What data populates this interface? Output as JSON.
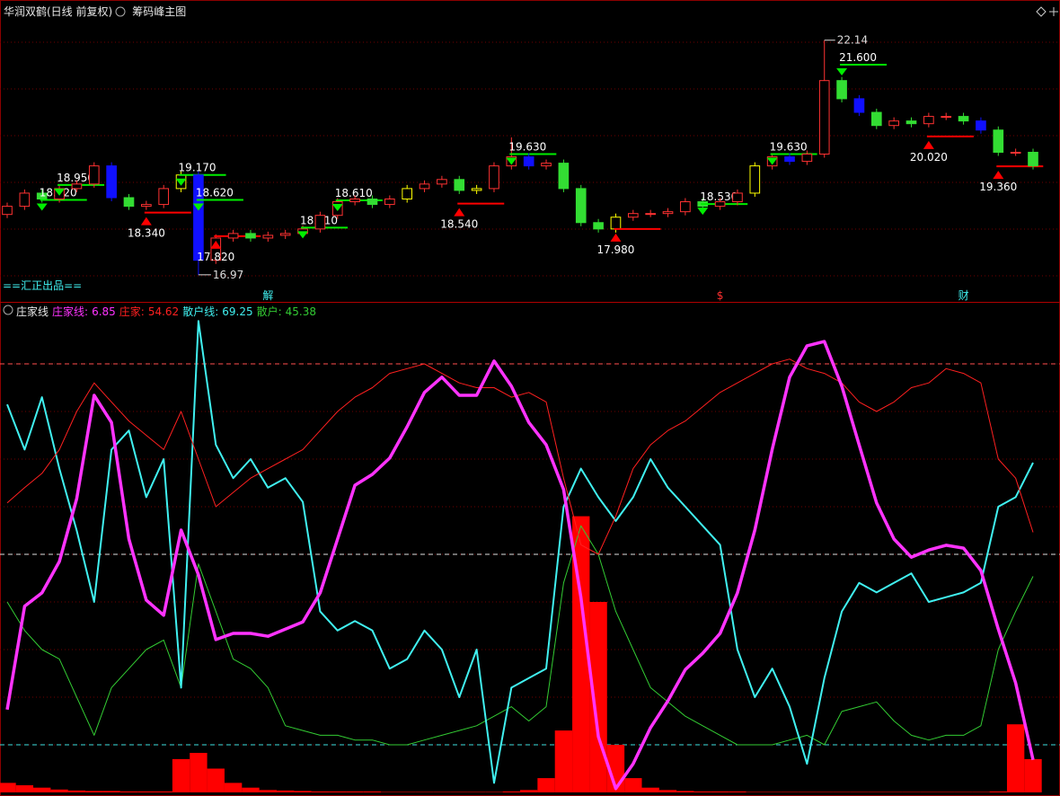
{
  "chart_data": [
    {
      "type": "candlestick",
      "title": "华润双鹤(日线 前复权)",
      "subtitle": "筹码峰主图",
      "brand": "==汇正出品==",
      "ylim": [
        16.69,
        22.63
      ],
      "open": [
        18.3,
        18.48,
        18.77,
        18.64,
        18.87,
        18.97,
        19.37,
        18.67,
        18.48,
        18.52,
        18.87,
        19.17,
        17.29,
        17.78,
        17.88,
        17.78,
        17.84,
        17.88,
        17.98,
        18.28,
        18.58,
        18.64,
        18.52,
        18.64,
        18.87,
        18.97,
        19.07,
        18.83,
        18.87,
        19.37,
        19.57,
        19.37,
        19.43,
        18.87,
        18.12,
        17.98,
        18.24,
        18.32,
        18.32,
        18.36,
        18.58,
        18.48,
        18.58,
        18.77,
        19.37,
        19.57,
        19.47,
        19.63,
        21.25,
        20.85,
        20.55,
        20.26,
        20.36,
        20.3,
        20.46,
        20.46,
        20.36,
        20.16,
        19.67,
        19.67
      ],
      "high": [
        18.56,
        18.85,
        18.85,
        18.95,
        19.05,
        19.45,
        19.45,
        18.75,
        18.6,
        18.95,
        19.25,
        19.25,
        17.86,
        17.96,
        17.96,
        17.92,
        17.96,
        18.06,
        18.36,
        18.66,
        18.72,
        18.72,
        18.72,
        18.95,
        19.05,
        19.15,
        19.15,
        18.95,
        19.45,
        20.0,
        19.65,
        19.51,
        19.51,
        18.95,
        18.2,
        18.32,
        18.4,
        18.4,
        18.44,
        18.66,
        18.66,
        18.66,
        18.85,
        19.45,
        19.65,
        19.65,
        19.71,
        22.14,
        21.33,
        20.93,
        20.63,
        20.44,
        20.44,
        20.54,
        20.54,
        20.54,
        20.44,
        20.24,
        19.75,
        19.75
      ],
      "low": [
        18.22,
        18.4,
        18.56,
        18.56,
        18.79,
        18.89,
        18.59,
        18.4,
        18.4,
        18.44,
        18.79,
        16.97,
        17.21,
        17.7,
        17.7,
        17.7,
        17.76,
        17.8,
        17.9,
        18.2,
        18.5,
        18.44,
        18.44,
        18.56,
        18.79,
        18.89,
        18.75,
        18.75,
        18.79,
        19.29,
        19.29,
        19.29,
        18.79,
        18.04,
        17.9,
        17.9,
        18.16,
        18.24,
        18.24,
        18.28,
        18.4,
        18.4,
        18.5,
        18.69,
        19.29,
        19.39,
        19.39,
        19.55,
        20.77,
        20.47,
        20.18,
        20.18,
        20.22,
        20.22,
        20.38,
        20.28,
        20.08,
        19.59,
        19.59,
        19.29
      ],
      "close": [
        18.48,
        18.77,
        18.64,
        18.87,
        18.97,
        19.37,
        18.67,
        18.48,
        18.52,
        18.87,
        19.17,
        17.29,
        17.78,
        17.88,
        17.78,
        17.84,
        17.88,
        17.98,
        18.28,
        18.58,
        18.64,
        18.52,
        18.64,
        18.87,
        18.97,
        19.07,
        18.83,
        18.87,
        19.37,
        19.57,
        19.37,
        19.43,
        18.87,
        18.12,
        17.98,
        18.24,
        18.32,
        18.32,
        18.36,
        18.58,
        18.48,
        18.58,
        18.77,
        19.37,
        19.57,
        19.47,
        19.63,
        21.25,
        20.85,
        20.55,
        20.26,
        20.36,
        20.3,
        20.46,
        20.46,
        20.36,
        20.16,
        19.67,
        19.67,
        19.37
      ],
      "colors": [
        "#ff3232",
        "#ff3232",
        "#33dd33",
        "#ff3232",
        "#ff3232",
        "#ff3232",
        "#1010ff",
        "#33dd33",
        "#ff3232",
        "#ff3232",
        "#ffff00",
        "#1010ff",
        "#ff3232",
        "#ff3232",
        "#33dd33",
        "#ff3232",
        "#ff3232",
        "#ff3232",
        "#ff3232",
        "#ff3232",
        "#ff3232",
        "#33dd33",
        "#ff3232",
        "#ffff00",
        "#ff3232",
        "#ff3232",
        "#33dd33",
        "#ffff00",
        "#ff3232",
        "#ff3232",
        "#1010ff",
        "#ff3232",
        "#33dd33",
        "#33dd33",
        "#33dd33",
        "#ffff00",
        "#ff3232",
        "#ff3232",
        "#ff3232",
        "#ff3232",
        "#33dd33",
        "#ff3232",
        "#ff3232",
        "#ffff00",
        "#ff3232",
        "#1010ff",
        "#ff3232",
        "#ff3232",
        "#33dd33",
        "#1010ff",
        "#33dd33",
        "#ff3232",
        "#33dd33",
        "#ff3232",
        "#ff3232",
        "#33dd33",
        "#1010ff",
        "#33dd33",
        "#ff3232",
        "#33dd33"
      ],
      "levels": [
        null,
        null,
        {
          "value": 18.62,
          "label": "18.620",
          "color": "#00ee00",
          "anchor": "top"
        },
        {
          "value": 18.95,
          "label": "18.950",
          "color": "#00ee00",
          "anchor": "top"
        },
        null,
        null,
        null,
        null,
        {
          "value": 18.34,
          "label": "18.340",
          "color": "#ff0000",
          "anchor": "bottom"
        },
        null,
        {
          "value": 19.17,
          "label": "19.170",
          "color": "#00ee00",
          "anchor": "top"
        },
        {
          "value": 18.62,
          "label": "18.620",
          "color": "#00ee00",
          "anchor": "top"
        },
        {
          "value": 17.82,
          "label": "17.820",
          "color": "#ff0000",
          "anchor": "bottom"
        },
        null,
        null,
        null,
        null,
        {
          "value": 18.01,
          "label": "18.010",
          "color": "#00ee00",
          "anchor": "top"
        },
        null,
        {
          "value": 18.61,
          "label": "18.610",
          "color": "#00ee00",
          "anchor": "top"
        },
        null,
        null,
        null,
        null,
        null,
        null,
        {
          "value": 18.54,
          "label": "18.540",
          "color": "#ff0000",
          "anchor": "bottom"
        },
        null,
        null,
        {
          "value": 19.63,
          "label": "19.630",
          "color": "#00ee00",
          "anchor": "top"
        },
        null,
        null,
        null,
        null,
        null,
        {
          "value": 17.98,
          "label": "17.980",
          "color": "#ff0000",
          "anchor": "bottom"
        },
        null,
        null,
        null,
        null,
        {
          "value": 18.53,
          "label": "18.530",
          "color": "#00ee00",
          "anchor": "top"
        },
        null,
        null,
        null,
        {
          "value": 19.63,
          "label": "19.630",
          "color": "#00ee00",
          "anchor": "top"
        },
        null,
        null,
        null,
        {
          "value": 21.6,
          "label": "21.600",
          "color": "#00ee00",
          "anchor": "top"
        },
        null,
        null,
        null,
        null,
        {
          "value": 20.02,
          "label": "20.020",
          "color": "#ff0000",
          "anchor": "bottom"
        },
        null,
        null,
        null,
        {
          "value": 19.36,
          "label": "19.360",
          "color": "#ff0000",
          "anchor": "bottom"
        },
        null,
        null
      ],
      "markers": [
        null,
        null,
        null,
        null,
        null,
        null,
        null,
        null,
        null,
        null,
        null,
        null,
        null,
        null,
        null,
        {
          "label": "解",
          "color": "#40f0f0"
        },
        null,
        null,
        null,
        null,
        null,
        null,
        null,
        null,
        null,
        null,
        null,
        null,
        null,
        null,
        null,
        null,
        null,
        null,
        null,
        null,
        null,
        null,
        null,
        null,
        null,
        {
          "label": "$",
          "color": "#ff3030"
        },
        null,
        null,
        null,
        null,
        null,
        null,
        null,
        null,
        null,
        null,
        null,
        null,
        null,
        {
          "label": "财",
          "color": "#40f0f0"
        },
        null,
        null,
        null,
        null
      ]
    },
    {
      "type": "line",
      "title": "庄家线",
      "ylim": [
        0,
        100
      ],
      "reference_lines": [
        {
          "value": 90,
          "color": "#ff5050"
        },
        {
          "value": 50,
          "color": "#e0e0e0"
        },
        {
          "value": 10,
          "color": "#40e0e0"
        }
      ],
      "bars": {
        "color": "#ff0000",
        "values": [
          2,
          1.5,
          1,
          0.6,
          0.4,
          0.3,
          0.3,
          0.2,
          0.2,
          0.2,
          7,
          8.3,
          5,
          2,
          1,
          0.5,
          0.4,
          0.3,
          0.2,
          0.2,
          0.2,
          0.2,
          0.1,
          0.1,
          0.1,
          0.1,
          0.1,
          0.1,
          0.1,
          0.2,
          0.5,
          3,
          13,
          58,
          40,
          10,
          3,
          1,
          0.5,
          0.3,
          0.2,
          0.2,
          0.2,
          0.1,
          0.1,
          0.1,
          0.1,
          0.1,
          0.1,
          0.1,
          0.1,
          0.1,
          0.1,
          0.1,
          0.1,
          0.1,
          0.1,
          0.2,
          14.3,
          7
        ]
      },
      "series": [
        {
          "name": "庄家线:",
          "color": "#ff33ff",
          "width": 3.5,
          "values": [
            17.4,
            39.1,
            41.9,
            48.5,
            61.7,
            83.4,
            77.7,
            53.2,
            40.4,
            37.2,
            55.1,
            45.7,
            32.1,
            33.4,
            33.4,
            32.8,
            34.3,
            35.8,
            41.9,
            53.2,
            64.5,
            66.8,
            70.2,
            76.8,
            84.0,
            87.2,
            83.4,
            83.4,
            90.6,
            85.3,
            77.7,
            73.0,
            63.6,
            40.9,
            11.7,
            0.8,
            6.0,
            13.6,
            19.2,
            25.8,
            29.2,
            33.4,
            41.9,
            55.1,
            72.1,
            87.2,
            93.8,
            94.7,
            85.3,
            73.0,
            60.8,
            53.2,
            49.4,
            50.9,
            51.9,
            51.3,
            46.6,
            34.3,
            23.0,
            6.85
          ]
        },
        {
          "name": "庄家:",
          "color": "#ff2020",
          "width": 1,
          "values": [
            60.8,
            64,
            67,
            72,
            80,
            86,
            82,
            78,
            75,
            72,
            80,
            70,
            60,
            63,
            66,
            68,
            70,
            72,
            76,
            80,
            83,
            85,
            88,
            89,
            90,
            88,
            86,
            85,
            85,
            83,
            84,
            82,
            66,
            52,
            50,
            58,
            68,
            73,
            76,
            78,
            81,
            84,
            86,
            88,
            90,
            91,
            89,
            88,
            86,
            82,
            80,
            82,
            85,
            86,
            89,
            88,
            86,
            70,
            66,
            54.62
          ]
        },
        {
          "name": "散户线:",
          "color": "#40f0f0",
          "width": 2,
          "values": [
            81.5,
            72,
            83,
            68,
            55,
            40,
            72,
            76,
            62,
            70,
            22,
            99,
            73,
            66,
            70,
            64,
            66,
            61,
            38,
            34,
            36,
            34,
            26,
            28,
            34,
            30,
            20,
            30,
            2,
            22,
            24,
            26,
            60,
            68,
            62,
            57,
            62,
            70,
            64,
            60,
            56,
            52,
            30,
            20,
            26,
            18,
            6,
            24,
            38,
            44,
            42,
            44,
            46,
            40,
            41,
            42,
            44,
            60,
            62,
            69.25
          ]
        },
        {
          "name": "散户:",
          "color": "#33cc33",
          "width": 1,
          "values": [
            40,
            34,
            30,
            28,
            20,
            12,
            22,
            26,
            30,
            32,
            22,
            48,
            38,
            28,
            26,
            22,
            14,
            13,
            12,
            12,
            11,
            11,
            10,
            10,
            11,
            12,
            13,
            14,
            16,
            18,
            15,
            18,
            44,
            56,
            50,
            38,
            30,
            22,
            19,
            16,
            14,
            12,
            10,
            10,
            10,
            11,
            12,
            10,
            17,
            18,
            19,
            15,
            12,
            11,
            12,
            12,
            14,
            30,
            38,
            45.38
          ]
        }
      ]
    }
  ]
}
